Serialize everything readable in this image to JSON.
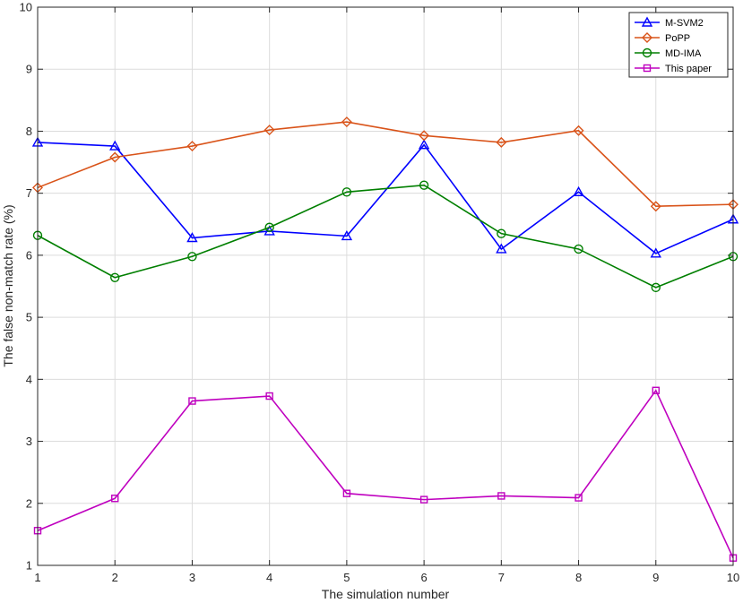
{
  "chart_data": {
    "type": "line",
    "title": "",
    "xlabel": "The simulation number",
    "ylabel": "The false non-match rate (%)",
    "xlim": [
      1,
      10
    ],
    "ylim": [
      1,
      10
    ],
    "xticks": [
      1,
      2,
      3,
      4,
      5,
      6,
      7,
      8,
      9,
      10
    ],
    "yticks": [
      1,
      2,
      3,
      4,
      5,
      6,
      7,
      8,
      9,
      10
    ],
    "grid": true,
    "legend_position": "top-right",
    "x": [
      1,
      2,
      3,
      4,
      5,
      6,
      7,
      8,
      9,
      10
    ],
    "series": [
      {
        "name": "M-SVM2",
        "color": "#0000FF",
        "marker": "triangle",
        "values": [
          7.82,
          7.76,
          6.28,
          6.39,
          6.31,
          7.78,
          6.1,
          7.02,
          6.03,
          6.58
        ]
      },
      {
        "name": "PoPP",
        "color": "#D95319",
        "marker": "diamond",
        "values": [
          7.09,
          7.58,
          7.76,
          8.02,
          8.15,
          7.93,
          7.82,
          8.01,
          6.79,
          6.82
        ]
      },
      {
        "name": "MD-IMA",
        "color": "#007F00",
        "marker": "circle",
        "values": [
          6.32,
          5.64,
          5.98,
          6.45,
          7.02,
          7.13,
          6.35,
          6.1,
          5.48,
          5.98
        ]
      },
      {
        "name": "This paper",
        "color": "#BF00BF",
        "marker": "square",
        "values": [
          1.56,
          2.08,
          3.65,
          3.73,
          2.16,
          2.06,
          2.12,
          2.09,
          3.82,
          1.12
        ]
      }
    ]
  }
}
